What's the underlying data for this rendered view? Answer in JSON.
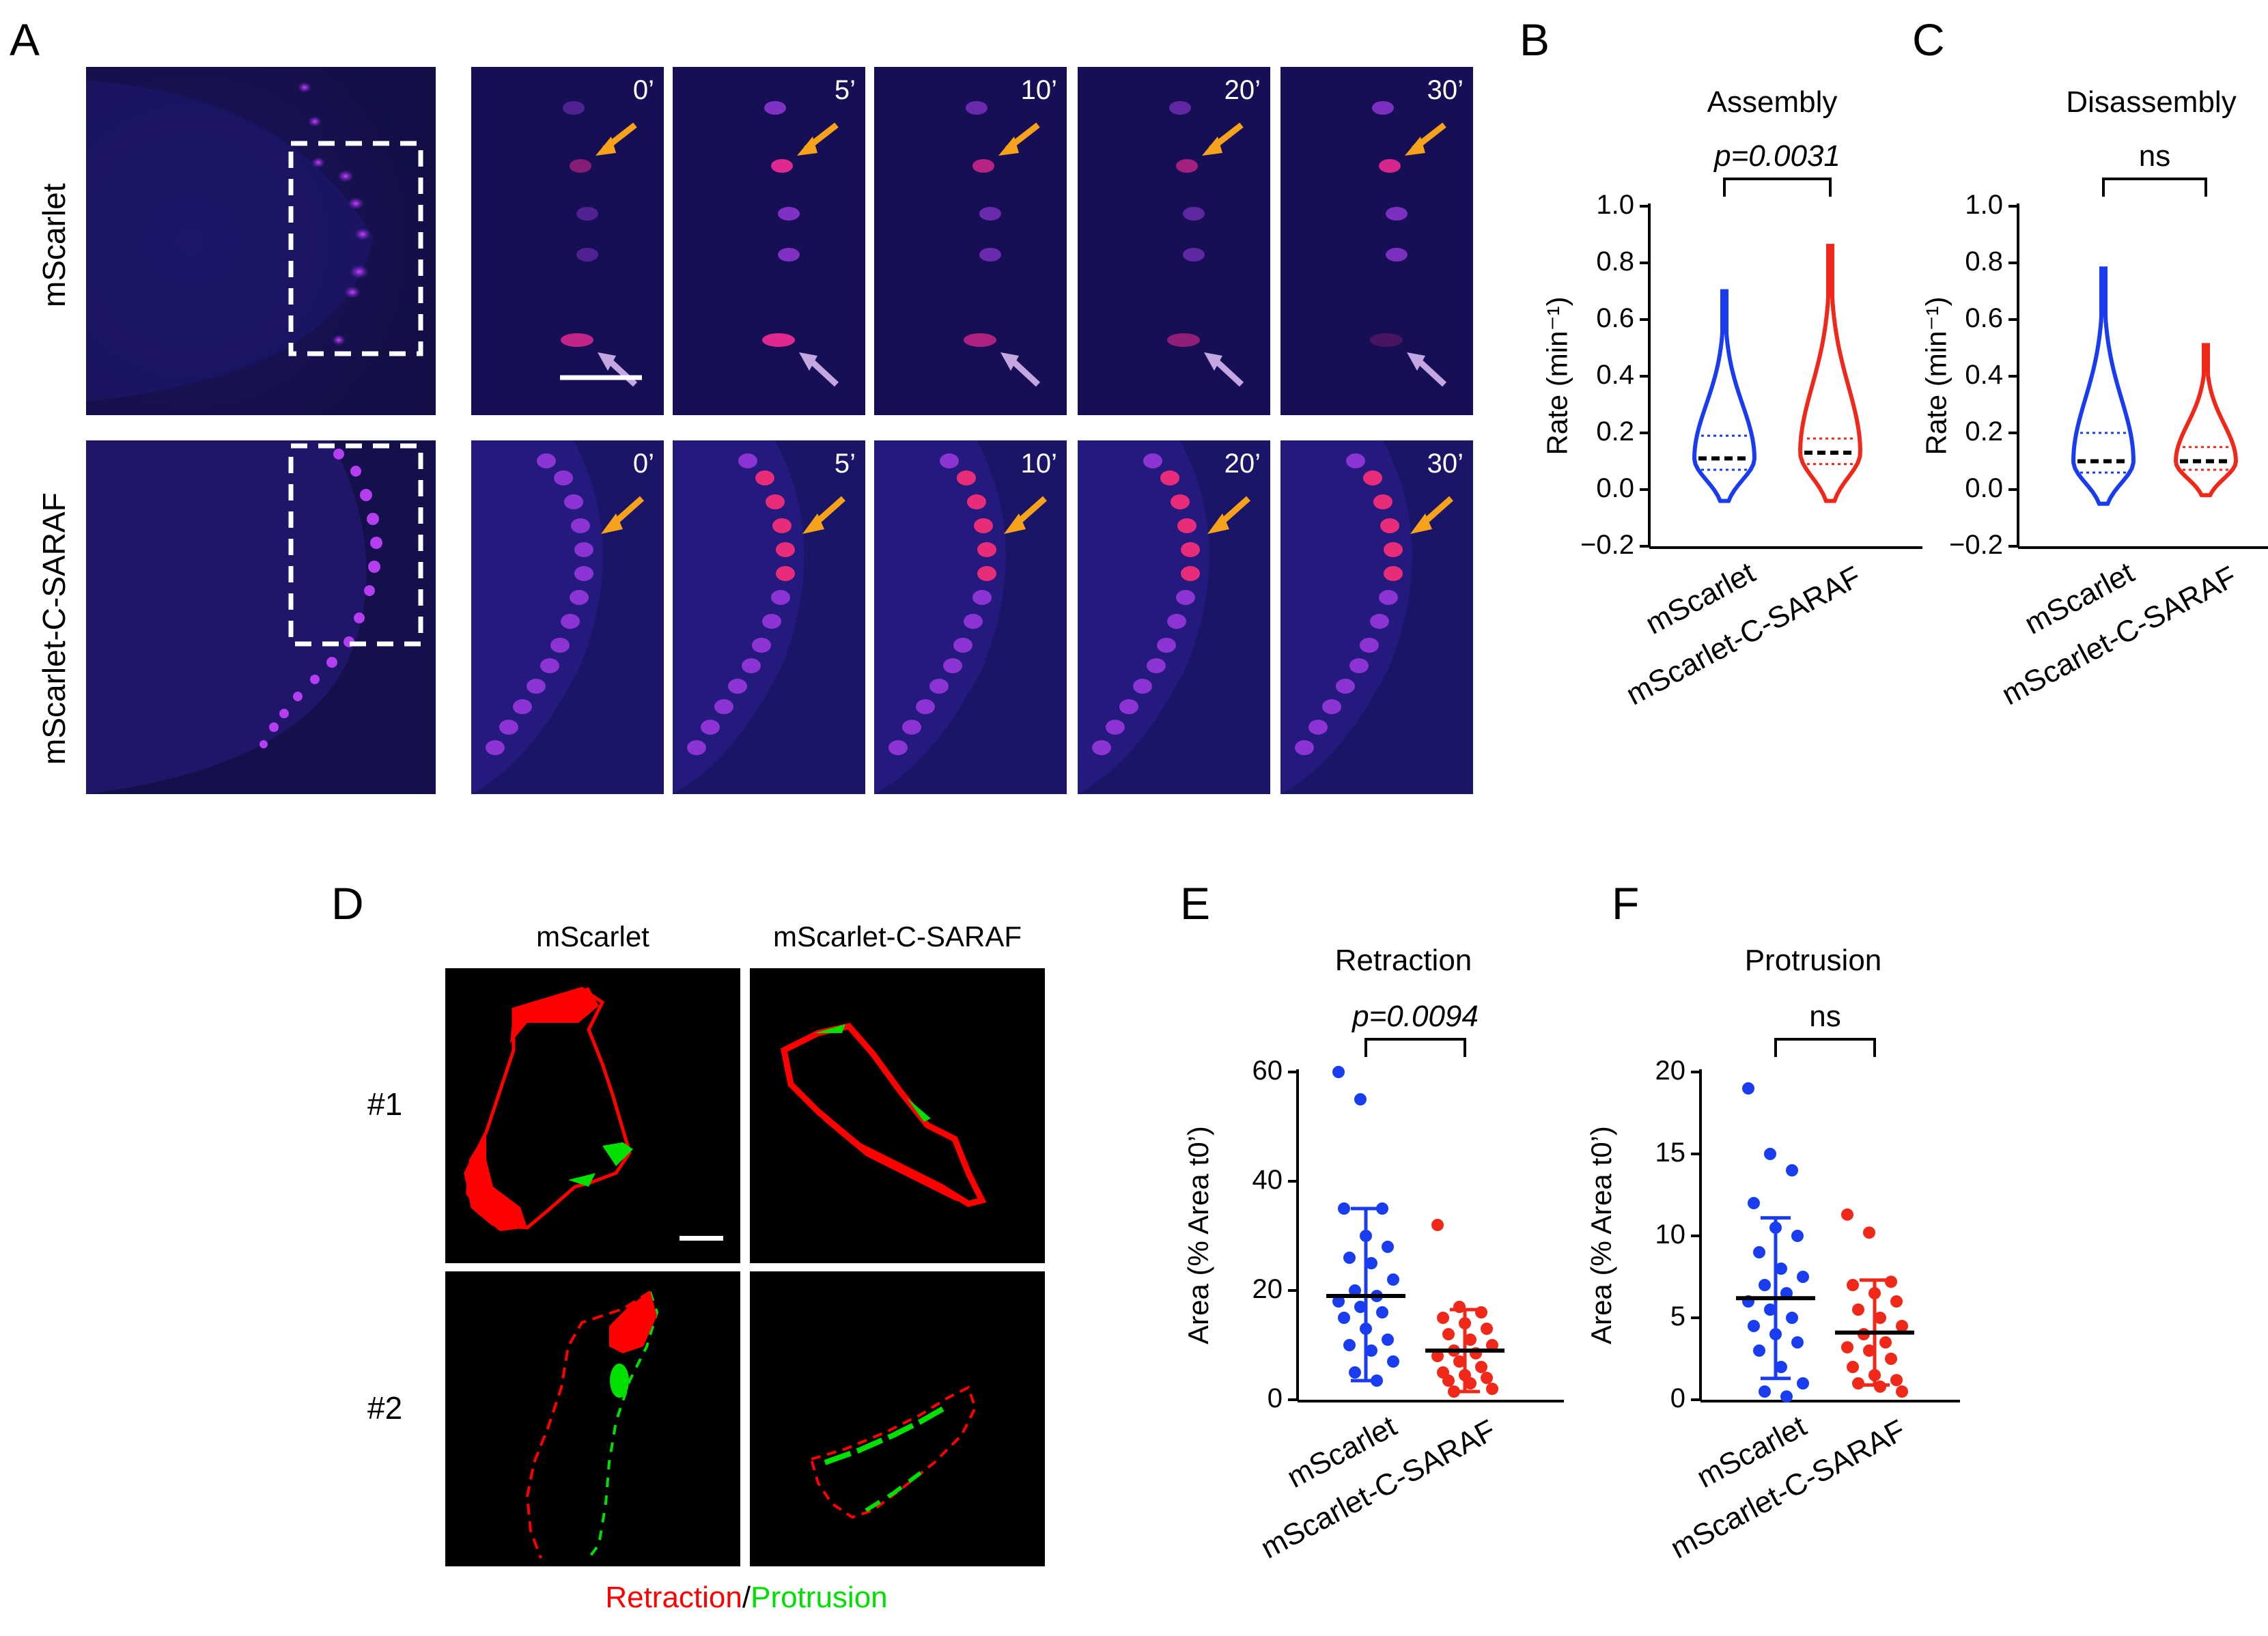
{
  "panels": {
    "A": "A",
    "B": "B",
    "C": "C",
    "D": "D",
    "E": "E",
    "F": "F"
  },
  "panel_A": {
    "rows": [
      {
        "label": "mScarlet"
      },
      {
        "label": "mScarlet-C-SARAF"
      }
    ],
    "times": [
      "0’",
      "5’",
      "10’",
      "20’",
      "30’"
    ],
    "arrow_colors": {
      "orange": "#f7a21b",
      "lilac": "#c4a6e0"
    }
  },
  "panel_D": {
    "columns": [
      "mScarlet",
      "mScarlet-C-SARAF"
    ],
    "rows": [
      "#1",
      "#2"
    ],
    "legend": {
      "retraction": "Retraction",
      "separator": "/",
      "protrusion": "Protrusion"
    },
    "colors": {
      "retraction": "#ff0000",
      "protrusion": "#00e000"
    }
  },
  "chart_data": [
    {
      "id": "B",
      "type": "violin",
      "title": "Assembly",
      "ylabel": "Rate (min⁻¹)",
      "ylim": [
        -0.2,
        1.0
      ],
      "yticks": [
        "1.0",
        "0.8",
        "0.6",
        "0.4",
        "0.2",
        "0.0",
        "−0.2"
      ],
      "categories": [
        "mScarlet",
        "mScarlet-C-SARAF"
      ],
      "series": [
        {
          "name": "mScarlet",
          "color": "#1a3cf0",
          "median": 0.11,
          "q1": 0.07,
          "q3": 0.19,
          "max": 0.7,
          "min": -0.04
        },
        {
          "name": "mScarlet-C-SARAF",
          "color": "#f0281a",
          "median": 0.13,
          "q1": 0.09,
          "q3": 0.18,
          "max": 0.86,
          "min": -0.04
        }
      ],
      "significance": "p=0.0031"
    },
    {
      "id": "C",
      "type": "violin",
      "title": "Disassembly",
      "ylabel": "Rate (min⁻¹)",
      "ylim": [
        -0.2,
        1.0
      ],
      "yticks": [
        "1.0",
        "0.8",
        "0.6",
        "0.4",
        "0.2",
        "0.0",
        "−0.2"
      ],
      "categories": [
        "mScarlet",
        "mScarlet-C-SARAF"
      ],
      "series": [
        {
          "name": "mScarlet",
          "color": "#1a3cf0",
          "median": 0.1,
          "q1": 0.06,
          "q3": 0.2,
          "max": 0.78,
          "min": -0.05
        },
        {
          "name": "mScarlet-C-SARAF",
          "color": "#f0281a",
          "median": 0.1,
          "q1": 0.07,
          "q3": 0.15,
          "max": 0.51,
          "min": -0.02
        }
      ],
      "significance": "ns"
    },
    {
      "id": "E",
      "type": "scatter",
      "title": "Retraction",
      "ylabel": "Area (% Area t0’)",
      "ylim": [
        0,
        60
      ],
      "yticks": [
        "60",
        "40",
        "20",
        "0"
      ],
      "categories": [
        "mScarlet",
        "mScarlet-C-SARAF"
      ],
      "series": [
        {
          "name": "mScarlet",
          "color": "#1a3cf0",
          "mean": 19,
          "sd_low": 3.5,
          "sd_high": 35,
          "values": [
            60,
            55,
            35,
            35,
            30,
            28,
            26,
            25,
            22,
            20,
            19,
            18,
            17,
            16,
            15,
            13,
            11,
            10,
            9,
            7,
            5,
            3.5
          ]
        },
        {
          "name": "mScarlet-C-SARAF",
          "color": "#f0281a",
          "mean": 9,
          "sd_low": 1.5,
          "sd_high": 16.5,
          "values": [
            32,
            17,
            16,
            15,
            14,
            13,
            12,
            11,
            10,
            9,
            8.5,
            8,
            7,
            6,
            5,
            4.5,
            4,
            3.5,
            3,
            2,
            1.5
          ]
        }
      ],
      "significance": "p=0.0094"
    },
    {
      "id": "F",
      "type": "scatter",
      "title": "Protrusion",
      "ylabel": "Area (% Area t0’)",
      "ylim": [
        0,
        20
      ],
      "yticks": [
        "20",
        "15",
        "10",
        "5",
        "0"
      ],
      "categories": [
        "mScarlet",
        "mScarlet-C-SARAF"
      ],
      "series": [
        {
          "name": "mScarlet",
          "color": "#1a3cf0",
          "mean": 6.2,
          "sd_low": 1.3,
          "sd_high": 11.1,
          "values": [
            19,
            15,
            14,
            12,
            10.5,
            10,
            9,
            8,
            7.5,
            7,
            6.5,
            6,
            5.5,
            5,
            4.5,
            4,
            3.5,
            3,
            2,
            1,
            0.5,
            0.2
          ]
        },
        {
          "name": "mScarlet-C-SARAF",
          "color": "#f0281a",
          "mean": 4.1,
          "sd_low": 0.9,
          "sd_high": 7.3,
          "values": [
            11.3,
            10.2,
            7.2,
            7,
            6.5,
            6,
            5.5,
            5,
            4.5,
            4,
            3.5,
            3.2,
            3,
            2.5,
            2,
            1.5,
            1.2,
            1,
            0.8,
            0.5
          ]
        }
      ],
      "significance": "ns"
    }
  ]
}
